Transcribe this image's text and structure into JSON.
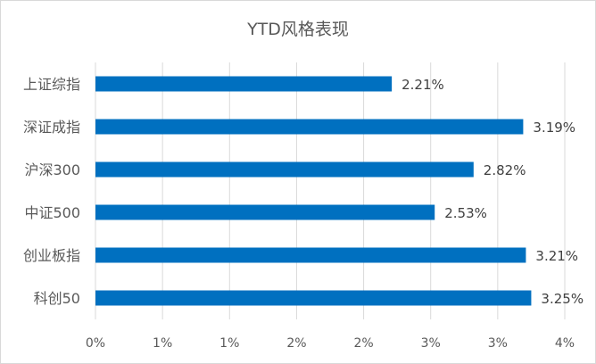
{
  "chart_data": {
    "type": "bar",
    "orientation": "horizontal",
    "title": "YTD风格表现",
    "categories": [
      "上证综指",
      "深证成指",
      "沪深300",
      "中证500",
      "创业板指",
      "科创50"
    ],
    "values": [
      2.21,
      3.19,
      2.82,
      2.53,
      3.21,
      3.25
    ],
    "data_labels": [
      "2.21%",
      "3.19%",
      "2.82%",
      "2.53%",
      "3.21%",
      "3.25%"
    ],
    "xlim": [
      0,
      3.5
    ],
    "x_ticks": [
      0,
      0.5,
      1,
      1.5,
      2,
      2.5,
      3,
      3.5
    ],
    "x_tick_labels": [
      "0%",
      "1%",
      "1%",
      "2%",
      "2%",
      "3%",
      "3%",
      "4%"
    ],
    "bar_color": "#0070c0",
    "grid": true,
    "legend": "none"
  }
}
